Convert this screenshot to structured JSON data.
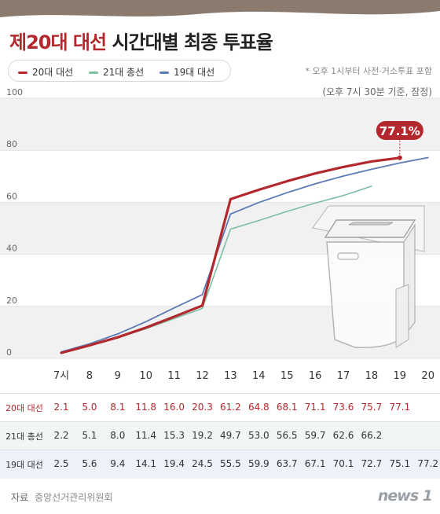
{
  "header": {
    "title_highlight": "제20대 대선",
    "title_rest": "시간대별 최종 투표율"
  },
  "notes": {
    "note1": "* 오후 1시부터 사전·거소투표 포함",
    "note2": "(오후 7시 30분 기준, 잠정)"
  },
  "callout": {
    "value": "77.1%"
  },
  "source": {
    "label": "자료",
    "name": "중앙선거관리위원회"
  },
  "logo": {
    "text": "news 1"
  },
  "colors": {
    "s20": "#b3282d",
    "s21": "#7cbf9f",
    "s19": "#5b7bb5"
  },
  "chart_data": {
    "type": "line",
    "x": [
      "7시",
      "8",
      "9",
      "10",
      "11",
      "12",
      "13",
      "14",
      "15",
      "16",
      "17",
      "18",
      "19",
      "20"
    ],
    "ylim": [
      0,
      100
    ],
    "yticks": [
      0,
      20,
      40,
      60,
      80,
      100
    ],
    "series": [
      {
        "name": "20대 대선",
        "label": "20대 대선",
        "color": "#b3282d",
        "values": [
          2.1,
          5.0,
          8.1,
          11.8,
          16.0,
          20.3,
          61.2,
          64.8,
          68.1,
          71.1,
          73.6,
          75.7,
          77.1,
          null
        ]
      },
      {
        "name": "21대 총선",
        "label": "21대 총선",
        "color": "#7cbf9f",
        "values": [
          2.2,
          5.1,
          8.0,
          11.4,
          15.3,
          19.2,
          49.7,
          53.0,
          56.5,
          59.7,
          62.6,
          66.2,
          null,
          null
        ]
      },
      {
        "name": "19대 대선",
        "label": "19대 대선",
        "color": "#5b7bb5",
        "values": [
          2.5,
          5.6,
          9.4,
          14.1,
          19.4,
          24.5,
          55.5,
          59.9,
          63.7,
          67.1,
          70.1,
          72.7,
          75.1,
          77.2
        ]
      }
    ],
    "legend": "top-left",
    "grid": true
  }
}
